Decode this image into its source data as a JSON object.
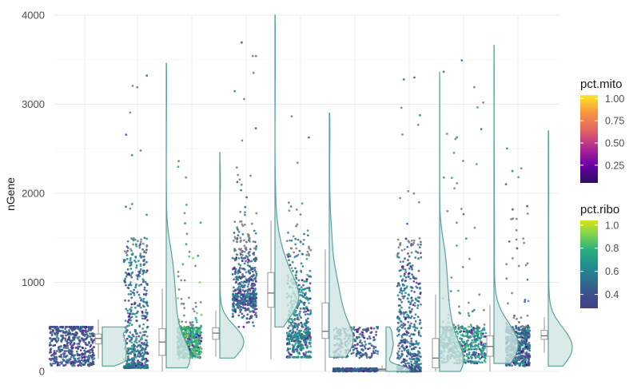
{
  "chart_data": {
    "type": "raincloud",
    "ylabel": "nGene",
    "ylim": [
      0,
      4000
    ],
    "y_ticks": [
      0,
      1000,
      2000,
      3000,
      4000
    ],
    "grid": true,
    "legend_position": "right",
    "groups": [
      {
        "id": "g1",
        "scatter_range": [
          60,
          500
        ],
        "max": 500,
        "median": 370,
        "q1": 310,
        "q3": 420,
        "dist": "uniform",
        "ribo": 0.4,
        "mito": 0.1
      },
      {
        "id": "g2",
        "scatter_range": [
          40,
          3460
        ],
        "max": 3460,
        "median": 330,
        "q1": 180,
        "q3": 480,
        "dist": "skew",
        "ribo": 0.55,
        "mito": 0.1
      },
      {
        "id": "g3",
        "scatter_range": [
          150,
          2460
        ],
        "max": 2460,
        "median": 430,
        "q1": 360,
        "q3": 490,
        "dist": "uniform",
        "ribo": 0.75,
        "mito": 0.15
      },
      {
        "id": "g4",
        "scatter_range": [
          500,
          4000
        ],
        "max": 4000,
        "median": 880,
        "q1": 720,
        "q3": 1110,
        "dist": "mid",
        "ribo": 0.5,
        "mito": 0.1
      },
      {
        "id": "g5",
        "scatter_range": [
          160,
          2900
        ],
        "max": 2900,
        "median": 450,
        "q1": 370,
        "q3": 770,
        "dist": "mid",
        "ribo": 0.6,
        "mito": 0.1
      },
      {
        "id": "g6",
        "scatter_range": [
          0,
          500
        ],
        "max": 500,
        "median": 20,
        "q1": 5,
        "q3": 30,
        "dist": "bimodal",
        "ribo": 0.45,
        "mito": 0.1
      },
      {
        "id": "g7",
        "scatter_range": [
          0,
          3360
        ],
        "max": 3360,
        "median": 150,
        "q1": 40,
        "q3": 370,
        "dist": "skew",
        "ribo": 0.5,
        "mito": 0.1
      },
      {
        "id": "g8",
        "scatter_range": [
          90,
          3660
        ],
        "max": 3660,
        "median": 280,
        "q1": 170,
        "q3": 400,
        "dist": "uniform",
        "ribo": 0.65,
        "mito": 0.3
      },
      {
        "id": "g9",
        "scatter_range": [
          60,
          2700
        ],
        "max": 2700,
        "median": 400,
        "q1": 360,
        "q3": 460,
        "dist": "uniform",
        "ribo": 0.5,
        "mito": 0.2
      }
    ],
    "legends": [
      {
        "title": "pct.mito",
        "ticks": [
          1.0,
          0.75,
          0.5,
          0.25
        ],
        "tick_labels": [
          "1.00",
          "0.75",
          "0.50",
          "0.25"
        ],
        "range": [
          0.05,
          1.04
        ],
        "colors": [
          "#fde725",
          "#f89540",
          "#e16462",
          "#b12a90",
          "#6a00a8",
          "#2c0f5f"
        ]
      },
      {
        "title": "pct.ribo",
        "ticks": [
          1.0,
          0.8,
          0.6,
          0.4
        ],
        "tick_labels": [
          "1.0",
          "0.8",
          "0.6",
          "0.4"
        ],
        "range": [
          0.28,
          1.04
        ],
        "colors": [
          "#d8e219",
          "#7ad151",
          "#2ab07f",
          "#21918c",
          "#2c728e",
          "#3b528b",
          "#433e85"
        ]
      }
    ],
    "colors": {
      "cloud_stroke": "#5aa39a",
      "cloud_fill": "#cfe5e2",
      "box_stroke": "#9a9a9a",
      "grid": "#ebebeb",
      "grey_point": "#7a7a7a"
    }
  }
}
